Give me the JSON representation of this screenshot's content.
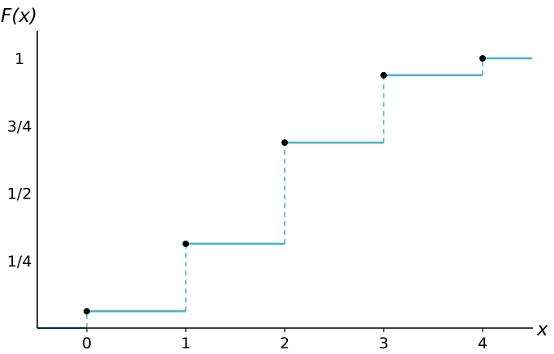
{
  "chart_data": {
    "type": "line",
    "subtype": "step-cdf",
    "title": "",
    "xlabel": "x",
    "ylabel": "F(x)",
    "xlim": [
      -0.5,
      4.5
    ],
    "ylim": [
      0,
      1
    ],
    "x_ticks": [
      {
        "value": 0,
        "label": "0"
      },
      {
        "value": 1,
        "label": "1"
      },
      {
        "value": 2,
        "label": "2"
      },
      {
        "value": 3,
        "label": "3"
      },
      {
        "value": 4,
        "label": "4"
      }
    ],
    "y_ticks": [
      {
        "value": 0.25,
        "label": "1/4"
      },
      {
        "value": 0.5,
        "label": "1/2"
      },
      {
        "value": 0.75,
        "label": "3/4"
      },
      {
        "value": 1.0,
        "label": "1"
      }
    ],
    "steps": [
      {
        "x_start": -0.5,
        "x_end": 0,
        "y": 0,
        "closed_start": false
      },
      {
        "x_start": 0,
        "x_end": 1,
        "y": 0.0625,
        "closed_start": true
      },
      {
        "x_start": 1,
        "x_end": 2,
        "y": 0.3125,
        "closed_start": true
      },
      {
        "x_start": 2,
        "x_end": 3,
        "y": 0.6875,
        "closed_start": true
      },
      {
        "x_start": 3,
        "x_end": 4,
        "y": 0.9375,
        "closed_start": true
      },
      {
        "x_start": 4,
        "x_end": 4.5,
        "y": 1.0,
        "closed_start": true
      }
    ],
    "grid": false,
    "legend": "none",
    "colors": {
      "step": "#4bb2cd",
      "point": "#000000",
      "axis": "#000000"
    }
  }
}
